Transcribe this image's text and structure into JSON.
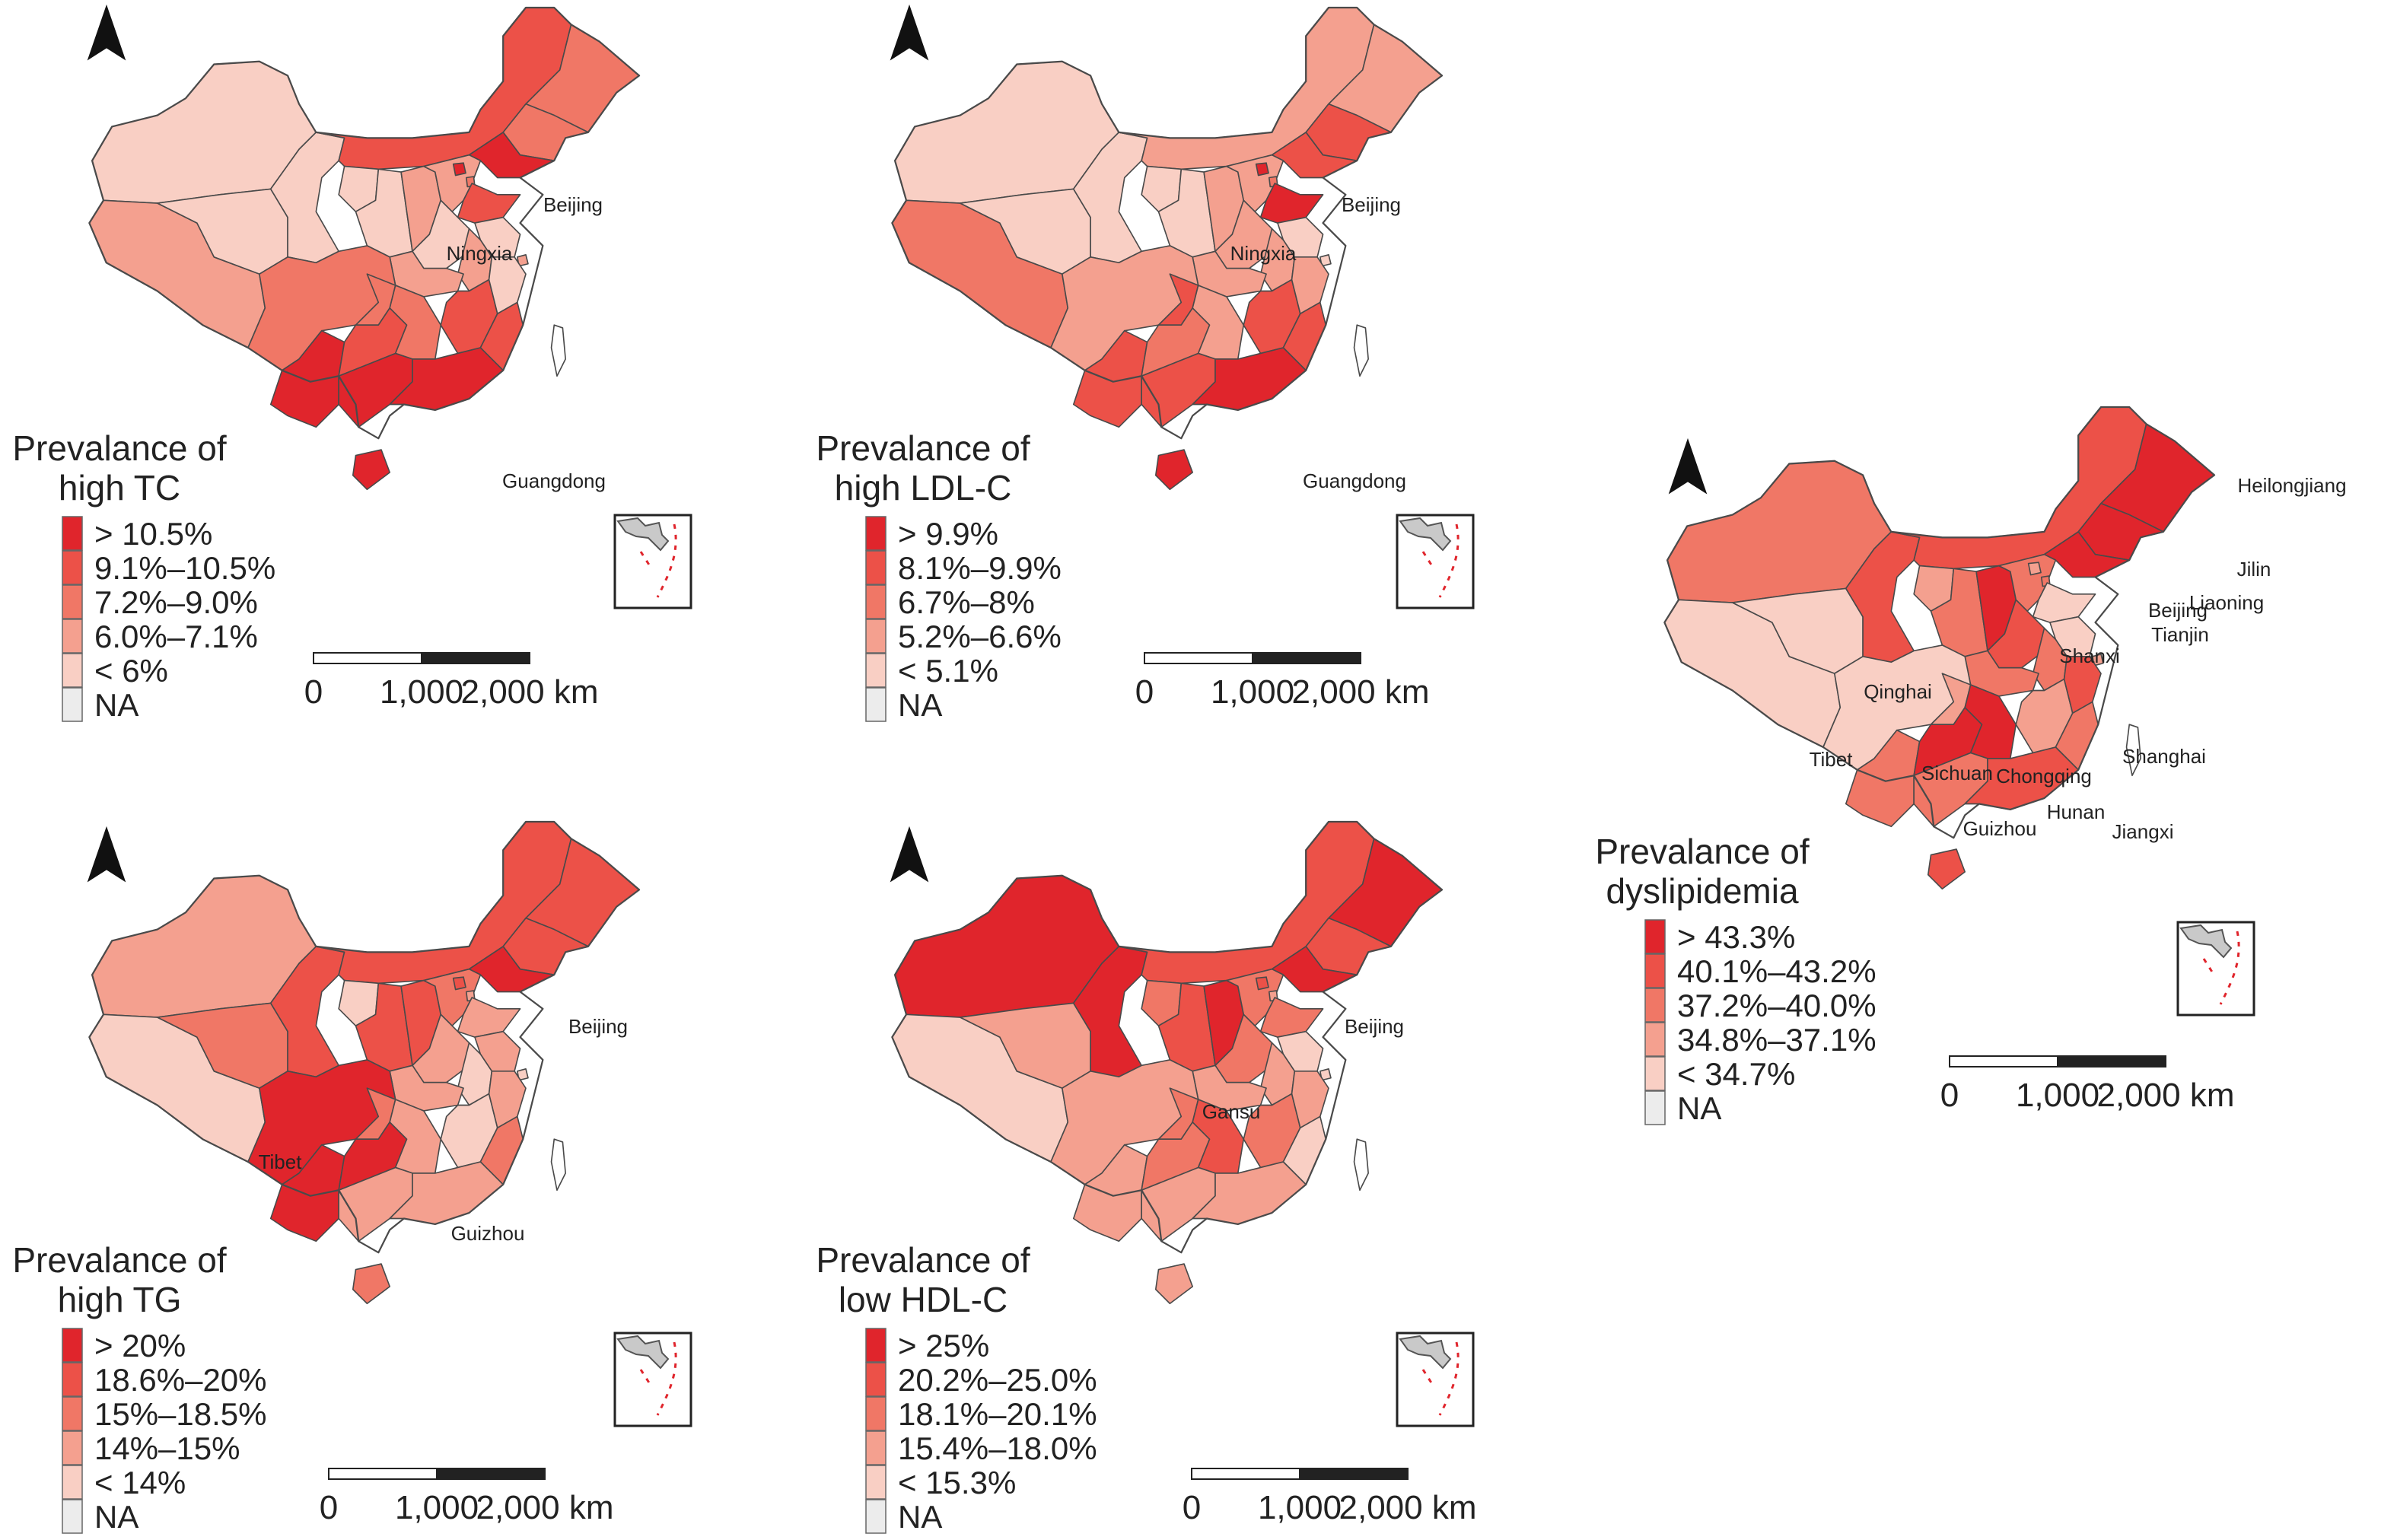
{
  "colors": {
    "c1": "#e0252c",
    "c2": "#ec5148",
    "c3": "#f07766",
    "c4": "#f4a08f",
    "c5": "#f9cfc4",
    "na": "#ececec"
  },
  "panels": [
    {
      "id": "tc",
      "legend_title": [
        "Prevalance of",
        "high TC"
      ],
      "classes": [
        "> 10.5%",
        "9.1%–10.5%",
        "7.2%–9.0%",
        "6.0%–7.1%",
        "< 6%",
        "NA"
      ],
      "province_labels": [
        "Beijing",
        "Ningxia",
        "Guangdong"
      ],
      "scale_labels": [
        "0",
        "1,000",
        "2,000 km"
      ]
    },
    {
      "id": "ldl",
      "legend_title": [
        "Prevalance of",
        "high LDL-C"
      ],
      "classes": [
        "> 9.9%",
        "8.1%–9.9%",
        "6.7%–8%",
        "5.2%–6.6%",
        "< 5.1%",
        "NA"
      ],
      "province_labels": [
        "Beijing",
        "Ningxia",
        "Guangdong"
      ],
      "scale_labels": [
        "0",
        "1,000",
        "2,000 km"
      ]
    },
    {
      "id": "tg",
      "legend_title": [
        "Prevalance of",
        "high TG"
      ],
      "classes": [
        "> 20%",
        "18.6%–20%",
        "15%–18.5%",
        "14%–15%",
        "< 14%",
        "NA"
      ],
      "province_labels": [
        "Beijing",
        "Tibet",
        "Guizhou"
      ],
      "scale_labels": [
        "0",
        "1,000",
        "2,000 km"
      ]
    },
    {
      "id": "hdl",
      "legend_title": [
        "Prevalance of",
        "low HDL-C"
      ],
      "classes": [
        "> 25%",
        "20.2%–25.0%",
        "18.1%–20.1%",
        "15.4%–18.0%",
        "< 15.3%",
        "NA"
      ],
      "province_labels": [
        "Beijing",
        "Gansu"
      ],
      "scale_labels": [
        "0",
        "1,000",
        "2,000 km"
      ]
    },
    {
      "id": "dys",
      "legend_title": [
        "Prevalance of",
        "dyslipidemia"
      ],
      "classes": [
        "> 43.3%",
        "40.1%–43.2%",
        "37.2%–40.0%",
        "34.8%–37.1%",
        "< 34.7%",
        "NA"
      ],
      "province_labels": [
        "Heilongjiang",
        "Jilin",
        "Liaoning",
        "Beijing",
        "Tianjin",
        "Shanxi",
        "Qinghai",
        "Tibet",
        "Sichuan",
        "Chongqing",
        "Shanghai",
        "Hunan",
        "Guizhou",
        "Jiangxi"
      ],
      "scale_labels": [
        "0",
        "1,000",
        "2,000 km"
      ]
    }
  ],
  "icons": {
    "north_arrow": "north-arrow-icon",
    "inset": "south-china-sea-inset-icon"
  }
}
